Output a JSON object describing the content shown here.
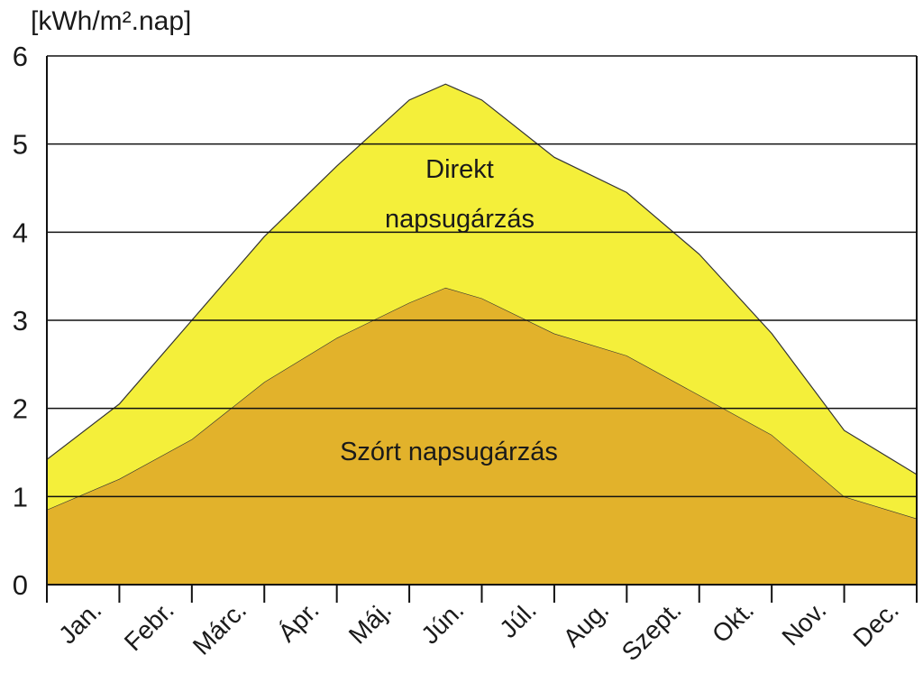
{
  "chart_data": {
    "type": "stacked-area",
    "y_axis_label": "[kWh/m².nap]",
    "categories": [
      "Jan.",
      "Febr.",
      "Márc.",
      "Ápr.",
      "Máj.",
      "Jún.",
      "Júl.",
      "Aug.",
      "Szept.",
      "Okt.",
      "Nov.",
      "Dec."
    ],
    "x": [
      0,
      1,
      2,
      3,
      4,
      5,
      5.5,
      6,
      7,
      8,
      9,
      10,
      11,
      12
    ],
    "xlim": [
      0,
      12
    ],
    "xticks": [
      0,
      1,
      2,
      3,
      4,
      5,
      6,
      7,
      8,
      9,
      10,
      11,
      12
    ],
    "ylim": [
      0,
      6
    ],
    "yticks": [
      0,
      1,
      2,
      3,
      4,
      5,
      6
    ],
    "grid": true,
    "series": [
      {
        "name": "Szórt napsugárzás",
        "color": "#e2b22b",
        "values": [
          0.85,
          1.2,
          1.65,
          2.3,
          2.8,
          3.2,
          3.37,
          3.25,
          2.85,
          2.6,
          2.15,
          1.7,
          1.0,
          0.75
        ]
      },
      {
        "name": "Direkt napsugárzás",
        "color": "#f4ef3a",
        "values": [
          0.57,
          0.85,
          1.35,
          1.65,
          1.95,
          2.3,
          2.31,
          2.25,
          2.0,
          1.85,
          1.6,
          1.15,
          0.75,
          0.5
        ]
      }
    ]
  }
}
